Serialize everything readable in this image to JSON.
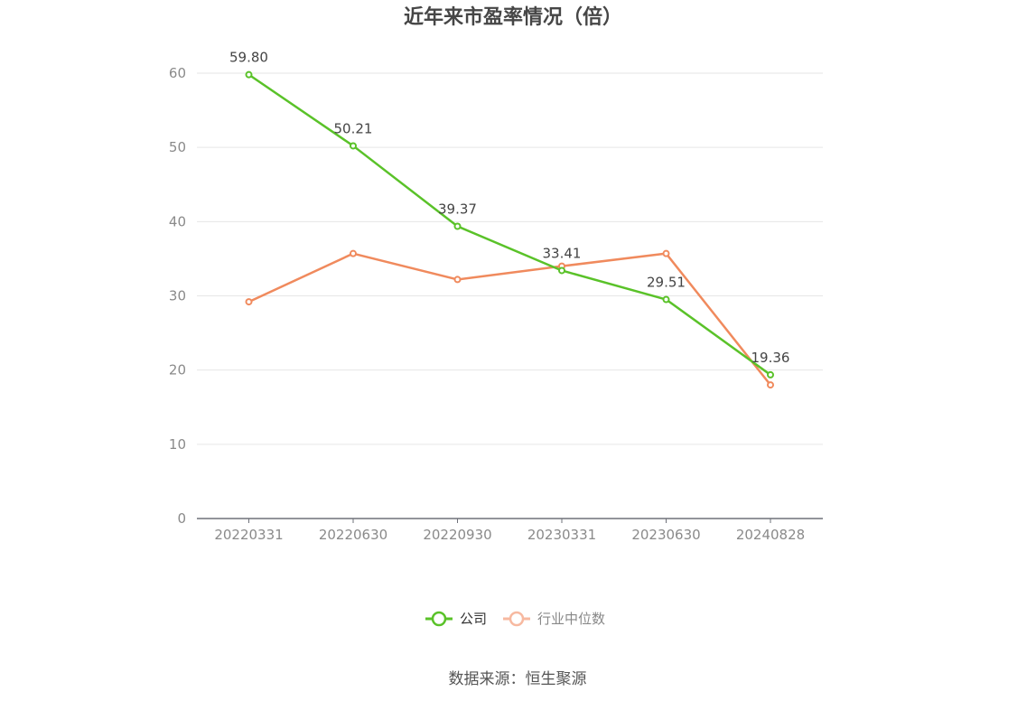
{
  "chart_data": {
    "type": "line",
    "title": "近年来市盈率情况（倍）",
    "categories": [
      "20220331",
      "20220630",
      "20220930",
      "20230331",
      "20230630",
      "20240828"
    ],
    "ylim": [
      0,
      60
    ],
    "yticks": [
      0,
      10,
      20,
      30,
      40,
      50,
      60
    ],
    "grid": true,
    "legend_position": "bottom",
    "series": [
      {
        "name": "公司",
        "color": "#5ac229",
        "values": [
          59.8,
          50.21,
          39.37,
          33.41,
          29.51,
          19.36
        ],
        "labels": [
          "59.80",
          "50.21",
          "39.37",
          "33.41",
          "29.51",
          "19.36"
        ]
      },
      {
        "name": "行业中位数",
        "color": "#f08a5d",
        "legend_color": "#f7b9a0",
        "values": [
          29.2,
          35.7,
          32.2,
          34.0,
          35.7,
          18.0
        ]
      }
    ]
  },
  "source": "数据来源：恒生聚源"
}
